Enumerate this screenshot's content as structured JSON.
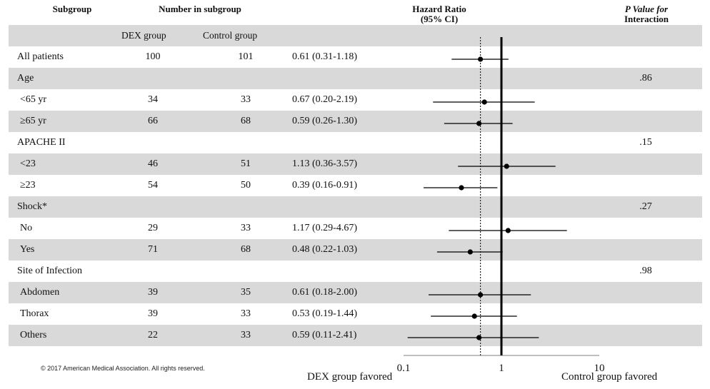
{
  "headers": {
    "subgroup": "Subgroup",
    "number_in_subgroup": "Number in subgroup",
    "hazard_ratio_line1": "Hazard Ratio",
    "hazard_ratio_line2": "(95% CI)",
    "p_value_line1": "P Value for",
    "p_value_line2": "Interaction",
    "dex_group": "DEX group",
    "control_group": "Control group"
  },
  "rows": [
    {
      "label": "All patients",
      "dex": "100",
      "control": "101",
      "hr_text": "0.61 (0.31-1.18)",
      "p": "",
      "shaded": false,
      "indent": false
    },
    {
      "label": "Age",
      "dex": "",
      "control": "",
      "hr_text": "",
      "p": ".86",
      "shaded": true,
      "indent": false
    },
    {
      "label": "<65 yr",
      "dex": "34",
      "control": "33",
      "hr_text": "0.67 (0.20-2.19)",
      "p": "",
      "shaded": false,
      "indent": true
    },
    {
      "label": "≥65 yr",
      "dex": "66",
      "control": "68",
      "hr_text": "0.59 (0.26-1.30)",
      "p": "",
      "shaded": true,
      "indent": true
    },
    {
      "label": "APACHE II",
      "dex": "",
      "control": "",
      "hr_text": "",
      "p": ".15",
      "shaded": false,
      "indent": false
    },
    {
      "label": "<23",
      "dex": "46",
      "control": "51",
      "hr_text": "1.13 (0.36-3.57)",
      "p": "",
      "shaded": true,
      "indent": true
    },
    {
      "label": "≥23",
      "dex": "54",
      "control": "50",
      "hr_text": "0.39 (0.16-0.91)",
      "p": "",
      "shaded": false,
      "indent": true
    },
    {
      "label": "Shock*",
      "dex": "",
      "control": "",
      "hr_text": "",
      "p": ".27",
      "shaded": true,
      "indent": false
    },
    {
      "label": "No",
      "dex": "29",
      "control": "33",
      "hr_text": "1.17 (0.29-4.67)",
      "p": "",
      "shaded": false,
      "indent": true
    },
    {
      "label": "Yes",
      "dex": "71",
      "control": "68",
      "hr_text": "0.48 (0.22-1.03)",
      "p": "",
      "shaded": true,
      "indent": true
    },
    {
      "label": "Site of Infection",
      "dex": "",
      "control": "",
      "hr_text": "",
      "p": ".98",
      "shaded": false,
      "indent": false
    },
    {
      "label": "Abdomen",
      "dex": "39",
      "control": "35",
      "hr_text": "0.61 (0.18-2.00)",
      "p": "",
      "shaded": true,
      "indent": true
    },
    {
      "label": "Thorax",
      "dex": "39",
      "control": "33",
      "hr_text": "0.53 (0.19-1.44)",
      "p": "",
      "shaded": false,
      "indent": true
    },
    {
      "label": "Others",
      "dex": "22",
      "control": "33",
      "hr_text": "0.59 (0.11-2.41)",
      "p": "",
      "shaded": true,
      "indent": true
    }
  ],
  "chart_data": {
    "type": "scatter",
    "x_scale": "log",
    "xlim": [
      0.1,
      10
    ],
    "x_ticks": [
      "0.1",
      "1",
      "10"
    ],
    "reference_line": 1,
    "overall_estimate_line": 0.61,
    "xlabel_left": "DEX group favored",
    "xlabel_right": "Control group favored",
    "points": [
      {
        "label": "All patients",
        "hr": 0.61,
        "lo": 0.31,
        "hi": 1.18
      },
      {
        "label": "<65 yr",
        "hr": 0.67,
        "lo": 0.2,
        "hi": 2.19
      },
      {
        "label": "≥65 yr",
        "hr": 0.59,
        "lo": 0.26,
        "hi": 1.3
      },
      {
        "label": "<23",
        "hr": 1.13,
        "lo": 0.36,
        "hi": 3.57
      },
      {
        "label": "≥23",
        "hr": 0.39,
        "lo": 0.16,
        "hi": 0.91
      },
      {
        "label": "No",
        "hr": 1.17,
        "lo": 0.29,
        "hi": 4.67
      },
      {
        "label": "Yes",
        "hr": 0.48,
        "lo": 0.22,
        "hi": 1.03
      },
      {
        "label": "Abdomen",
        "hr": 0.61,
        "lo": 0.18,
        "hi": 2.0
      },
      {
        "label": "Thorax",
        "hr": 0.53,
        "lo": 0.19,
        "hi": 1.44
      },
      {
        "label": "Others",
        "hr": 0.59,
        "lo": 0.11,
        "hi": 2.41
      }
    ]
  },
  "footer": {
    "copyright": "© 2017 American Medical Association. All rights reserved."
  }
}
